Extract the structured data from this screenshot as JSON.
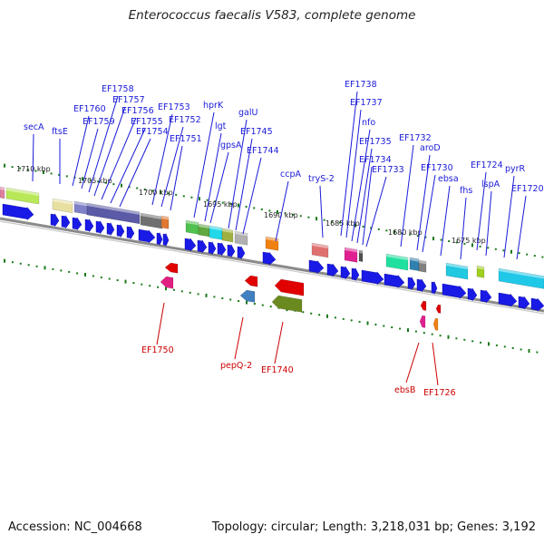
{
  "title": "Enterococcus faecalis V583, complete genome",
  "footer": {
    "accession": "Accession: NC_004668",
    "summary": "Topology: circular; Length: 3,218,031 bp; Genes: 3,192"
  },
  "colors": {
    "forward_label": "#1a1ad8",
    "reverse_label": "#cc0000",
    "leader": "#1a1ad8",
    "reverse_leader": "#cc0000",
    "strand_arrow": "#1a1ae6",
    "tick": "#1b7a1b",
    "backbone": "#8a8a8a"
  },
  "kbp_ticks": [
    "1710 kbp",
    "1705 kbp",
    "1700 kbp",
    "1695 kbp",
    "1690 kbp",
    "1685 kbp",
    "1680 kbp",
    "1675 kbp"
  ],
  "forward_labels": [
    "secA",
    "ftsE",
    "EF1760",
    "EF1759",
    "EF1758",
    "EF1757",
    "EF1756",
    "EF1755",
    "EF1754",
    "EF1753",
    "EF1752",
    "EF1751",
    "hprK",
    "lgt",
    "gpsA",
    "galU",
    "EF1745",
    "EF1744",
    "ccpA",
    "tryS-2",
    "EF1738",
    "EF1737",
    "nfo",
    "EF1735",
    "EF1734",
    "EF1733",
    "EF1732",
    "aroD",
    "EF1730",
    "ebsa",
    "fhs",
    "EF1724",
    "lspA",
    "pyrR",
    "EF1720"
  ],
  "reverse_labels": [
    "EF1750",
    "pepQ-2",
    "EF1740",
    "ebsB",
    "EF1726"
  ]
}
